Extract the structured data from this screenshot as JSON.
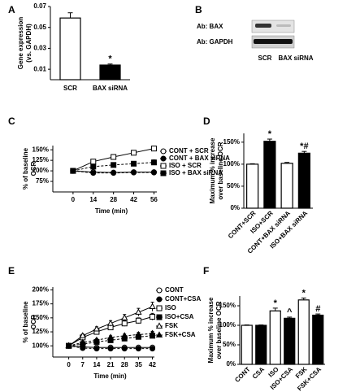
{
  "chart_data": [
    {
      "type": "bar",
      "panel_label": "A",
      "ylabel": [
        "Gene expression",
        "(vs. GAPDH)"
      ],
      "categories": [
        "SCR",
        "BAX siRNA"
      ],
      "values": [
        0.059,
        0.014
      ],
      "errors": [
        0.005,
        0.001
      ],
      "colors": [
        "#ffffff",
        "#000000"
      ],
      "annotations": [
        {
          "index": 1,
          "text": "*"
        }
      ],
      "ylim": [
        0,
        0.07
      ],
      "yticks": [
        0.01,
        0.03,
        0.05,
        0.07
      ]
    },
    {
      "type": "line",
      "panel_label": "C",
      "ylabel": [
        "% of baseline",
        "OCR"
      ],
      "xlabel": "Time (min)",
      "x": [
        0,
        14,
        28,
        42,
        56
      ],
      "xlim": [
        -14,
        58
      ],
      "xticks": [
        0,
        14,
        28,
        42,
        56
      ],
      "ylim": [
        50,
        160
      ],
      "yticks": [
        {
          "value": 75,
          "label": "75%"
        },
        {
          "value": 100,
          "label": "100%"
        },
        {
          "value": 125,
          "label": "125%"
        },
        {
          "value": 150,
          "label": "150%"
        }
      ],
      "series": [
        {
          "name": "CONT + SCR",
          "color": "#000000",
          "marker": "circle",
          "filled": false,
          "dashed": false,
          "values": [
            100,
            97,
            96,
            97,
            97
          ],
          "errors": [
            1,
            2,
            2,
            2,
            2
          ]
        },
        {
          "name": "CONT + BAX siRNA",
          "color": "#000000",
          "marker": "circle",
          "filled": true,
          "dashed": true,
          "values": [
            100,
            95,
            95,
            96,
            96
          ],
          "errors": [
            1,
            2,
            2,
            2,
            2
          ]
        },
        {
          "name": "ISO + SCR",
          "color": "#000000",
          "marker": "square",
          "filled": false,
          "dashed": false,
          "values": [
            100,
            122,
            133,
            143,
            153
          ],
          "errors": [
            1,
            2,
            3,
            3,
            3
          ]
        },
        {
          "name": "ISO + BAX siRNA",
          "color": "#000000",
          "marker": "square",
          "filled": true,
          "dashed": true,
          "values": [
            100,
            110,
            114,
            117,
            120
          ],
          "errors": [
            1,
            3,
            4,
            5,
            6
          ]
        }
      ]
    },
    {
      "type": "bar",
      "panel_label": "D",
      "ylabel": [
        "Maximum % increase",
        "over baseline OCR"
      ],
      "categories": [
        "CONT+SCR",
        "ISO+SCR",
        "CONT+BAX siRNA",
        "ISO+BAX siRNA"
      ],
      "values": [
        100,
        152,
        102,
        125
      ],
      "errors": [
        1,
        5,
        2,
        4
      ],
      "colors": [
        "#ffffff",
        "#000000",
        "#ffffff",
        "#000000"
      ],
      "annotations": [
        {
          "index": 1,
          "text": "*"
        },
        {
          "index": 3,
          "text": "*#"
        }
      ],
      "ylim": [
        0,
        170
      ],
      "yticks": [
        {
          "value": 0,
          "label": "0%"
        },
        {
          "value": 50,
          "label": "50%"
        },
        {
          "value": 100,
          "label": "100%"
        },
        {
          "value": 150,
          "label": "150%"
        }
      ]
    },
    {
      "type": "line",
      "panel_label": "E",
      "ylabel": [
        "% of baseline",
        "OCR"
      ],
      "xlabel": "Time (min)",
      "x": [
        0,
        7,
        14,
        21,
        28,
        35,
        42
      ],
      "xlim": [
        -8,
        43
      ],
      "xticks": [
        0,
        7,
        14,
        21,
        28,
        35,
        42
      ],
      "ylim": [
        80,
        205
      ],
      "yticks": [
        {
          "value": 100,
          "label": "100%"
        },
        {
          "value": 125,
          "label": "125%"
        },
        {
          "value": 150,
          "label": "150%"
        },
        {
          "value": 175,
          "label": "175%"
        },
        {
          "value": 200,
          "label": "200%"
        }
      ],
      "series": [
        {
          "name": "CONT",
          "color": "#000000",
          "marker": "circle",
          "filled": false,
          "dashed": false,
          "values": [
            100,
            98,
            97,
            97,
            97,
            97,
            97
          ],
          "errors": [
            1,
            2,
            2,
            2,
            2,
            2,
            2
          ]
        },
        {
          "name": "CONT+CSA",
          "color": "#000000",
          "marker": "circle",
          "filled": true,
          "dashed": true,
          "values": [
            100,
            96,
            95,
            95,
            95,
            95,
            95
          ],
          "errors": [
            1,
            2,
            2,
            2,
            2,
            2,
            2
          ]
        },
        {
          "name": "ISO",
          "color": "#000000",
          "marker": "square",
          "filled": false,
          "dashed": false,
          "values": [
            100,
            115,
            125,
            133,
            140,
            145,
            152
          ],
          "errors": [
            1,
            3,
            4,
            4,
            5,
            5,
            6
          ]
        },
        {
          "name": "ISO+CSA",
          "color": "#000000",
          "marker": "square",
          "filled": true,
          "dashed": true,
          "values": [
            100,
            103,
            107,
            110,
            113,
            116,
            118
          ],
          "errors": [
            1,
            2,
            3,
            3,
            3,
            4,
            4
          ]
        },
        {
          "name": "FSK",
          "color": "#000000",
          "marker": "triangle",
          "filled": false,
          "dashed": false,
          "values": [
            100,
            118,
            130,
            140,
            150,
            160,
            170
          ],
          "errors": [
            1,
            3,
            4,
            5,
            6,
            7,
            8
          ]
        },
        {
          "name": "FSK+CSA",
          "color": "#000000",
          "marker": "triangle",
          "filled": true,
          "dashed": true,
          "values": [
            100,
            106,
            110,
            115,
            118,
            120,
            122
          ],
          "errors": [
            1,
            2,
            3,
            3,
            3,
            4,
            4
          ]
        }
      ]
    },
    {
      "type": "bar",
      "panel_label": "F",
      "ylabel": [
        "Maximum % increase",
        "over baseline OCR"
      ],
      "categories": [
        "CONT",
        "CSA",
        "ISO",
        "ISO+CSA",
        "FSK",
        "FSK+CSA"
      ],
      "values": [
        100,
        100,
        137,
        118,
        165,
        126
      ],
      "errors": [
        1,
        1,
        7,
        3,
        5,
        3
      ],
      "colors": [
        "#ffffff",
        "#000000",
        "#ffffff",
        "#000000",
        "#ffffff",
        "#000000"
      ],
      "annotations": [
        {
          "index": 2,
          "text": "*"
        },
        {
          "index": 3,
          "text": "^"
        },
        {
          "index": 4,
          "text": "*"
        },
        {
          "index": 5,
          "text": "#"
        }
      ],
      "ylim": [
        0,
        175
      ],
      "yticks": [
        {
          "value": 0,
          "label": "0%"
        },
        {
          "value": 50,
          "label": "50%"
        },
        {
          "value": 100,
          "label": "100%"
        },
        {
          "value": 150,
          "label": "150%"
        }
      ]
    }
  ],
  "blot": {
    "panel_label": "B",
    "antibodies": [
      "Ab: BAX",
      "Ab: GAPDH"
    ],
    "lanes": [
      "SCR",
      "BAX siRNA"
    ]
  }
}
